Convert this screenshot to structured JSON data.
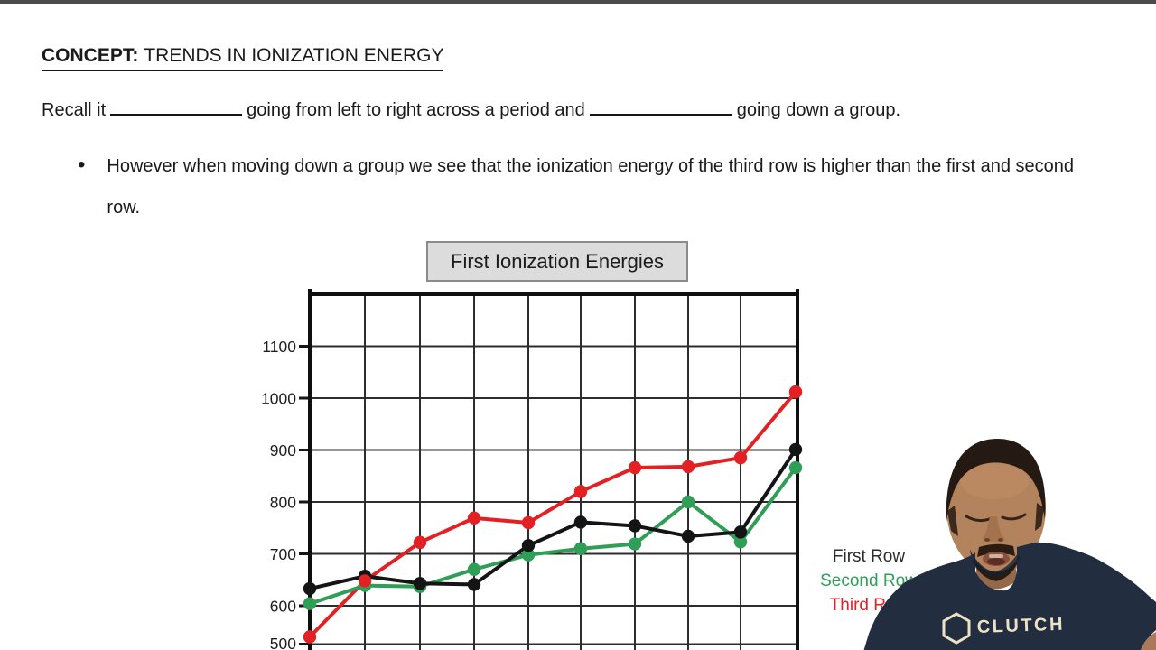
{
  "window": {
    "top_bar_color": "#4b4b4b"
  },
  "concept": {
    "label": "CONCEPT:",
    "title": "TRENDS IN IONIZATION ENERGY"
  },
  "recall": {
    "part1": "Recall it",
    "part2": "going from left to right across a period and",
    "part3": "going down a group."
  },
  "bullet": {
    "marker": "•",
    "text": "However when moving down a group we see that the ionization energy of the third row is higher than the first and second row."
  },
  "legend": {
    "items": [
      {
        "label": "First Row",
        "color": "#2b2b2b"
      },
      {
        "label": "Second Row",
        "color": "#2f9e57"
      },
      {
        "label": "Third Row",
        "color": "#e32124"
      }
    ]
  },
  "instructor": {
    "shirt_logo_text": "CLUTCH"
  },
  "chart_data": {
    "type": "line",
    "title": "First Ionization Energies",
    "xlabel": "",
    "ylabel": "",
    "x": [
      1,
      2,
      3,
      4,
      5,
      6,
      7,
      8,
      9,
      10
    ],
    "yticks": [
      500,
      600,
      700,
      800,
      900,
      1000,
      1100
    ],
    "ylim": [
      500,
      1210
    ],
    "grid": true,
    "legend_position": "right",
    "series": [
      {
        "name": "First Row",
        "color": "#141414",
        "values": [
          633,
          657,
          643,
          641,
          716,
          761,
          754,
          734,
          742,
          901
        ]
      },
      {
        "name": "Second Row",
        "color": "#2f9e57",
        "values": [
          604,
          639,
          637,
          670,
          698,
          710,
          719,
          800,
          723,
          866
        ]
      },
      {
        "name": "Third Row",
        "color": "#e32124",
        "values": [
          540,
          648,
          722,
          769,
          760,
          820,
          866,
          868,
          885,
          1012
        ]
      }
    ]
  }
}
